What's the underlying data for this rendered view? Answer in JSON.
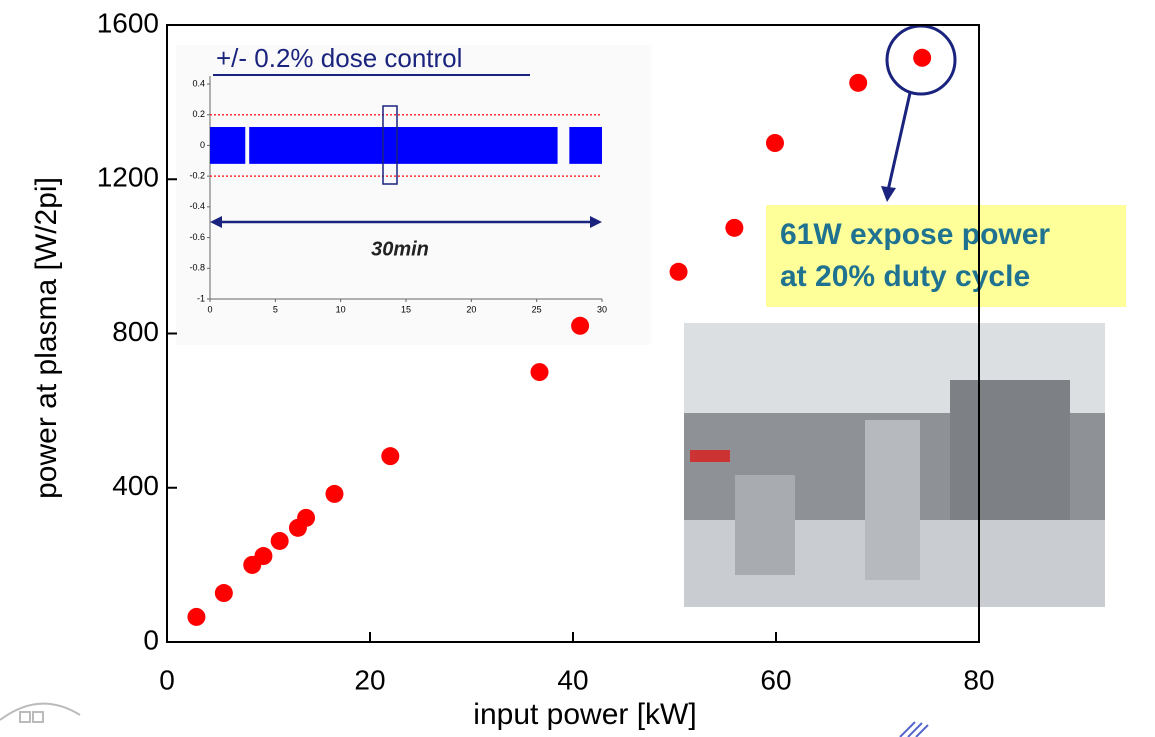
{
  "chart_data": [
    {
      "type": "scatter",
      "xlabel": "input power [kW]",
      "ylabel": "power at plasma [W/2pi]",
      "x": [
        2.9,
        5.6,
        8.4,
        9.5,
        11.1,
        12.9,
        13.7,
        16.5,
        22.0,
        36.7,
        40.7,
        50.4,
        55.9,
        59.9,
        68.1,
        74.4
      ],
      "y": [
        65,
        127,
        200,
        223,
        262,
        296,
        322,
        384,
        482,
        700,
        820,
        960,
        1074,
        1294,
        1450,
        1515
      ],
      "color": "#ff0000",
      "xlim": [
        0,
        80
      ],
      "xticks": [
        0,
        20,
        40,
        60,
        80
      ],
      "ylim": [
        0,
        1600
      ],
      "yticks": [
        0,
        400,
        800,
        1200,
        1600
      ],
      "annotation": [
        "61W expose power",
        "at 20% duty cycle"
      ]
    },
    {
      "type": "band",
      "title": "+/- 0.2% dose control",
      "annotation": "30min",
      "x_ranges": [
        [
          0,
          2.7
        ],
        [
          3,
          26.6
        ],
        [
          27.5,
          30
        ]
      ],
      "band": [
        -0.12,
        0.12
      ],
      "limits": [
        0.2,
        -0.2
      ],
      "color": "#0000ff",
      "xlim": [
        0,
        30
      ],
      "xticks": [
        0,
        5,
        10,
        15,
        20,
        25,
        30
      ],
      "ylim": [
        -1,
        0.4
      ],
      "yticks": [
        0.4,
        0.2,
        0,
        -0.2,
        -0.4,
        -0.6,
        -0.8,
        -1
      ]
    }
  ]
}
